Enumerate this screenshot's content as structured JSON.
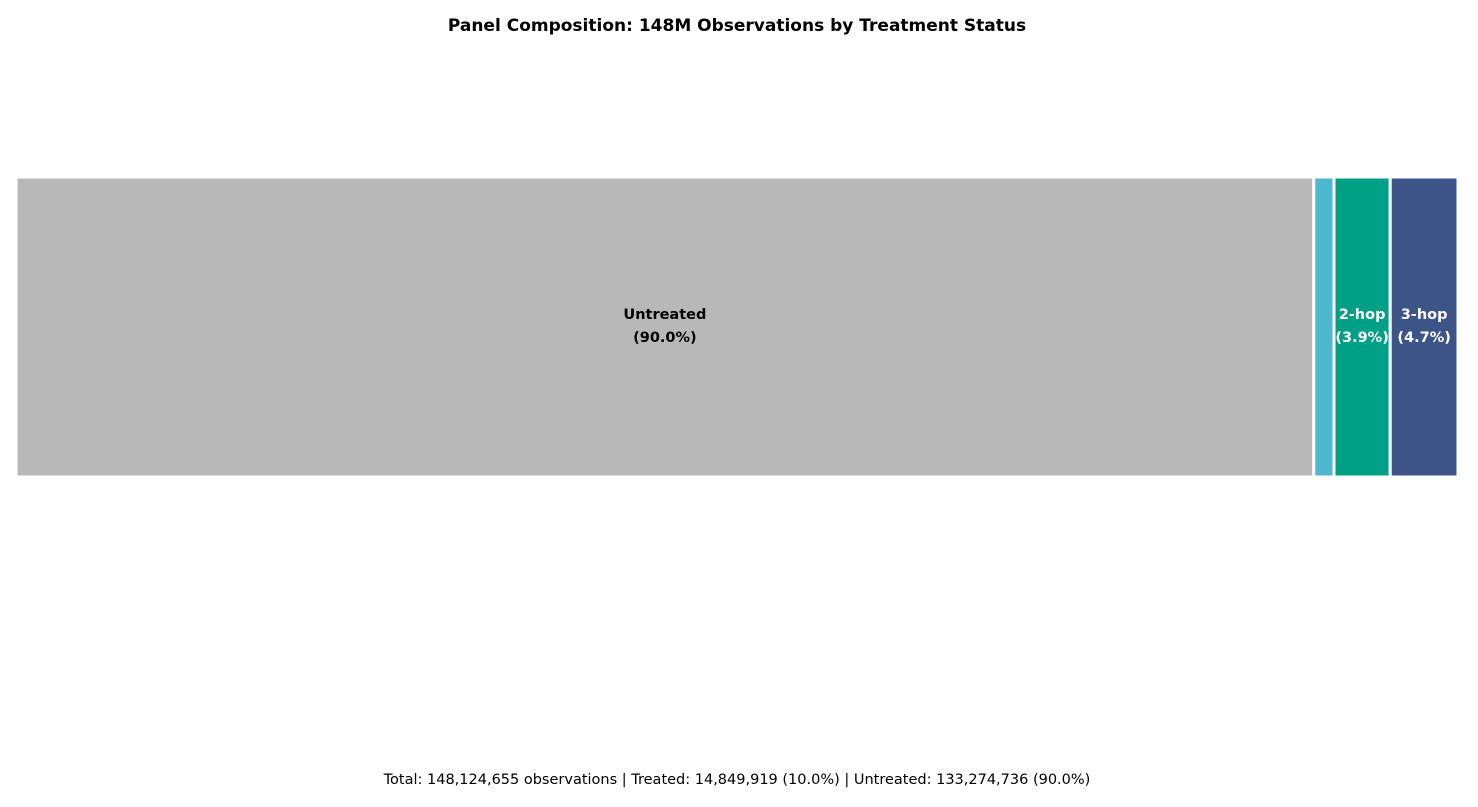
{
  "chart_data": {
    "type": "stacked-bar",
    "title": "Panel Composition: 148M Observations by Treatment Status",
    "categories": [
      "Untreated",
      null,
      "2-hop",
      "3-hop"
    ],
    "values": [
      90.0,
      1.4,
      3.9,
      4.7
    ],
    "value_labels": [
      "(90.0%)",
      null,
      "(3.9%)",
      "(4.7%)"
    ],
    "colors": [
      "#b8b8b8",
      "#4db8d0",
      "#00a087",
      "#3c5488"
    ],
    "xlim": [
      0,
      100
    ],
    "footnote": "Total: 148,124,655 observations | Treated: 14,849,919 (10.0%) | Untreated: 133,274,736 (90.0%)"
  }
}
